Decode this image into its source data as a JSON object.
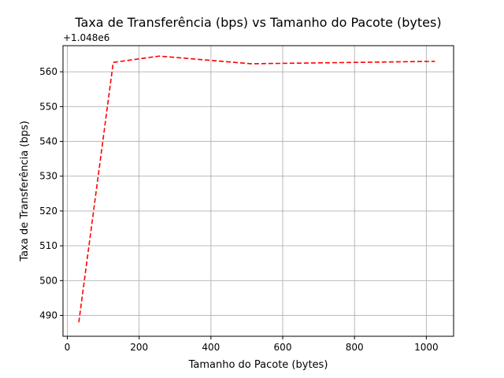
{
  "chart_data": {
    "type": "line",
    "title": "Taxa de Transferência (bps) vs Tamanho do Pacote (bytes)",
    "xlabel": "Tamanho do Pacote (bytes)",
    "ylabel": "Taxa de Transferência (bps)",
    "y_offset_label": "+1.048e6",
    "xlim": [
      -12,
      1076
    ],
    "ylim": [
      484,
      567.5
    ],
    "xticks": [
      0,
      200,
      400,
      600,
      800,
      1000
    ],
    "yticks": [
      490,
      500,
      510,
      520,
      530,
      540,
      550,
      560
    ],
    "grid": true,
    "series": [
      {
        "color": "#ff0000",
        "line_style": "dashed",
        "x": [
          32,
          128,
          256,
          512,
          1024
        ],
        "y": [
          488,
          562.7,
          564.5,
          562.3,
          563
        ]
      }
    ]
  }
}
